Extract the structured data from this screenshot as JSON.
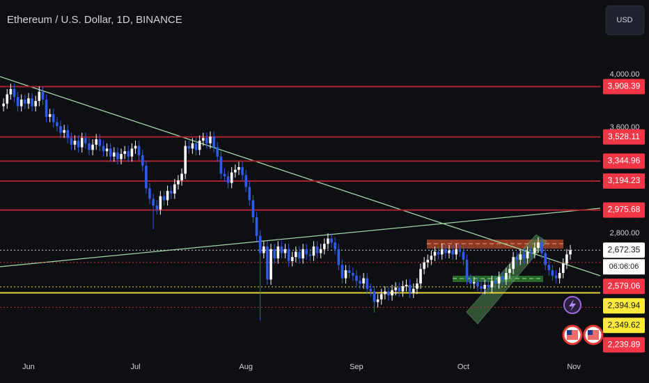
{
  "chart_data": {
    "type": "candlestick",
    "title": "Ethereum / U.S. Dollar, 1D, BINANCE",
    "currency": "USD",
    "up_color": "#ffffff",
    "down_color": "#2f5bea",
    "open": [
      3760,
      3780,
      3850,
      3890,
      3830,
      3760,
      3810,
      3780,
      3820,
      3760,
      3800,
      3870,
      3810,
      3680,
      3700,
      3640,
      3610,
      3560,
      3580,
      3520,
      3470,
      3500,
      3450,
      3520,
      3480,
      3430,
      3470,
      3510,
      3460,
      3420,
      3440,
      3380,
      3410,
      3360,
      3400,
      3420,
      3380,
      3440,
      3460,
      3390,
      3310,
      3140,
      3060,
      3010,
      2980,
      3080,
      3050,
      3120,
      3100,
      3170,
      3200,
      3250,
      3460,
      3440,
      3480,
      3430,
      3500,
      3520,
      3480,
      3530,
      3450,
      3380,
      3250,
      3230,
      3180,
      3260,
      3280,
      3300,
      3240,
      3150,
      3050,
      2920,
      2780,
      2650,
      2700,
      2450,
      2680,
      2610,
      2700,
      2650,
      2680,
      2590,
      2620,
      2660,
      2610,
      2680,
      2640,
      2630,
      2700,
      2650,
      2680,
      2720,
      2760,
      2730,
      2680,
      2560,
      2460,
      2520,
      2500,
      2480,
      2440,
      2420,
      2460,
      2380,
      2360,
      2280,
      2300,
      2340,
      2360,
      2330,
      2370,
      2390,
      2360,
      2400,
      2410,
      2350,
      2380,
      2420,
      2530,
      2580,
      2600,
      2630,
      2660,
      2640,
      2680,
      2650,
      2670,
      2640,
      2680,
      2660,
      2600,
      2450,
      2420,
      2430,
      2400,
      2380,
      2410,
      2390,
      2440,
      2420,
      2470,
      2450,
      2500,
      2530,
      2620,
      2600,
      2640,
      2610,
      2660,
      2650,
      2690,
      2730,
      2650,
      2560,
      2520,
      2480,
      2460,
      2500,
      2570,
      2640
    ],
    "high": [
      3820,
      3890,
      3930,
      3930,
      3870,
      3850,
      3850,
      3860,
      3860,
      3840,
      3910,
      3910,
      3850,
      3740,
      3740,
      3680,
      3650,
      3620,
      3620,
      3560,
      3540,
      3540,
      3560,
      3560,
      3520,
      3510,
      3550,
      3550,
      3500,
      3480,
      3480,
      3450,
      3450,
      3440,
      3460,
      3460,
      3480,
      3500,
      3500,
      3430,
      3350,
      3180,
      3100,
      3050,
      3120,
      3120,
      3160,
      3160,
      3210,
      3240,
      3290,
      3500,
      3500,
      3520,
      3520,
      3540,
      3560,
      3560,
      3570,
      3570,
      3490,
      3420,
      3290,
      3270,
      3300,
      3320,
      3340,
      3340,
      3280,
      3190,
      3090,
      2960,
      2820,
      2740,
      2740,
      2720,
      2720,
      2740,
      2740,
      2720,
      2720,
      2660,
      2700,
      2700,
      2720,
      2720,
      2680,
      2740,
      2740,
      2720,
      2760,
      2800,
      2800,
      2770,
      2720,
      2600,
      2560,
      2560,
      2540,
      2520,
      2480,
      2500,
      2500,
      2420,
      2400,
      2340,
      2380,
      2400,
      2400,
      2410,
      2430,
      2430,
      2440,
      2450,
      2450,
      2420,
      2460,
      2570,
      2620,
      2640,
      2670,
      2700,
      2700,
      2720,
      2720,
      2710,
      2710,
      2720,
      2720,
      2700,
      2640,
      2490,
      2470,
      2470,
      2440,
      2450,
      2450,
      2480,
      2480,
      2510,
      2510,
      2540,
      2570,
      2660,
      2660,
      2680,
      2680,
      2700,
      2700,
      2730,
      2770,
      2770,
      2690,
      2600,
      2560,
      2520,
      2540,
      2610,
      2680,
      2712
    ],
    "low": [
      3720,
      3740,
      3810,
      3790,
      3720,
      3720,
      3740,
      3740,
      3720,
      3720,
      3760,
      3770,
      3640,
      3640,
      3600,
      3570,
      3520,
      3520,
      3480,
      3430,
      3430,
      3410,
      3410,
      3440,
      3390,
      3390,
      3430,
      3420,
      3380,
      3380,
      3340,
      3340,
      3320,
      3320,
      3360,
      3340,
      3340,
      3400,
      3350,
      3270,
      3100,
      3020,
      2830,
      2940,
      2940,
      3010,
      3010,
      3060,
      3060,
      3130,
      3160,
      3210,
      3400,
      3400,
      3390,
      3390,
      3460,
      3440,
      3440,
      3410,
      3340,
      3210,
      3190,
      3140,
      3140,
      3220,
      3240,
      3200,
      3110,
      3010,
      2880,
      2740,
      2140,
      2610,
      2410,
      2410,
      2570,
      2570,
      2610,
      2610,
      2550,
      2550,
      2580,
      2570,
      2570,
      2600,
      2590,
      2590,
      2610,
      2610,
      2640,
      2680,
      2690,
      2640,
      2520,
      2420,
      2420,
      2460,
      2440,
      2400,
      2380,
      2380,
      2340,
      2320,
      2200,
      2240,
      2260,
      2300,
      2290,
      2290,
      2330,
      2320,
      2320,
      2360,
      2310,
      2310,
      2340,
      2380,
      2490,
      2540,
      2560,
      2590,
      2600,
      2600,
      2610,
      2610,
      2600,
      2600,
      2620,
      2560,
      2410,
      2380,
      2380,
      2360,
      2340,
      2340,
      2350,
      2350,
      2380,
      2380,
      2410,
      2410,
      2460,
      2490,
      2560,
      2560,
      2570,
      2570,
      2610,
      2610,
      2650,
      2610,
      2520,
      2480,
      2440,
      2420,
      2420,
      2460,
      2530,
      2600
    ],
    "close": [
      3780,
      3850,
      3890,
      3830,
      3760,
      3810,
      3780,
      3820,
      3760,
      3800,
      3870,
      3810,
      3680,
      3700,
      3640,
      3610,
      3560,
      3580,
      3520,
      3470,
      3500,
      3450,
      3520,
      3480,
      3430,
      3470,
      3510,
      3460,
      3420,
      3440,
      3380,
      3410,
      3360,
      3400,
      3420,
      3380,
      3440,
      3460,
      3390,
      3310,
      3140,
      3060,
      3010,
      2980,
      3080,
      3050,
      3120,
      3100,
      3170,
      3200,
      3250,
      3460,
      3440,
      3480,
      3430,
      3500,
      3520,
      3480,
      3530,
      3450,
      3380,
      3250,
      3230,
      3180,
      3260,
      3280,
      3300,
      3240,
      3150,
      3050,
      2920,
      2780,
      2650,
      2700,
      2450,
      2680,
      2610,
      2700,
      2650,
      2680,
      2590,
      2620,
      2660,
      2610,
      2680,
      2640,
      2630,
      2700,
      2650,
      2680,
      2720,
      2760,
      2730,
      2680,
      2560,
      2460,
      2520,
      2500,
      2480,
      2440,
      2420,
      2460,
      2380,
      2360,
      2280,
      2300,
      2340,
      2360,
      2330,
      2370,
      2390,
      2360,
      2400,
      2410,
      2350,
      2380,
      2420,
      2530,
      2580,
      2600,
      2630,
      2660,
      2640,
      2680,
      2650,
      2670,
      2640,
      2680,
      2660,
      2600,
      2450,
      2420,
      2430,
      2400,
      2380,
      2410,
      2390,
      2440,
      2420,
      2470,
      2450,
      2500,
      2530,
      2620,
      2600,
      2640,
      2610,
      2660,
      2650,
      2690,
      2730,
      2650,
      2560,
      2520,
      2480,
      2460,
      2500,
      2570,
      2640,
      2672
    ],
    "xlim": [
      -1,
      167.4
    ],
    "xticks": [
      {
        "value": 7,
        "label": "Jun"
      },
      {
        "value": 37,
        "label": "Jul"
      },
      {
        "value": 68,
        "label": "Aug"
      },
      {
        "value": 99,
        "label": "Sep"
      },
      {
        "value": 129,
        "label": "Oct"
      },
      {
        "value": 160,
        "label": "Nov"
      }
    ],
    "ylim": [
      1826,
      4563
    ],
    "yticks": [
      {
        "value": 2800,
        "label": "2,800.00"
      },
      {
        "value": 3600,
        "label": "3,600.00"
      },
      {
        "value": 4000,
        "label": "4,000.00"
      }
    ],
    "levels": [
      {
        "value": 3908.39,
        "label": "3,908.39",
        "color": "#f23645",
        "line_color": "#a8232d",
        "style": "solid"
      },
      {
        "value": 3528.11,
        "label": "3,528.11",
        "color": "#f23645",
        "line_color": "#a8232d",
        "style": "solid"
      },
      {
        "value": 3344.96,
        "label": "3,344.96",
        "color": "#f23645",
        "line_color": "#a8232d",
        "style": "solid"
      },
      {
        "value": 3194.23,
        "label": "3,194.23",
        "color": "#f23645",
        "line_color": "#a8232d",
        "style": "solid"
      },
      {
        "value": 2975.68,
        "label": "2,975.68",
        "color": "#f23645",
        "line_color": "#a8232d",
        "style": "solid"
      },
      {
        "value": 2672.35,
        "label": "2,672.35",
        "color": "#ffffff",
        "line_color": "#d8d8d8",
        "style": "dotted",
        "countdown": "06:06:06"
      },
      {
        "value": 2579.06,
        "label": "2,579.06",
        "color": "#f23645",
        "line_color": "#c3313b",
        "style": "dotted"
      },
      {
        "value": 2394.94,
        "label": "2,394.94",
        "color": "#ffeb3b",
        "line_color": "#e8d430",
        "style": "dotted"
      },
      {
        "value": 2349.62,
        "label": "2,349.62",
        "color": "#ffeb3b",
        "line_color": "#e8d430",
        "style": "solid"
      },
      {
        "value": 2239.89,
        "label": "2,239.89",
        "color": "#f23645",
        "line_color": "#c3313b",
        "style": "dotted"
      }
    ]
  }
}
